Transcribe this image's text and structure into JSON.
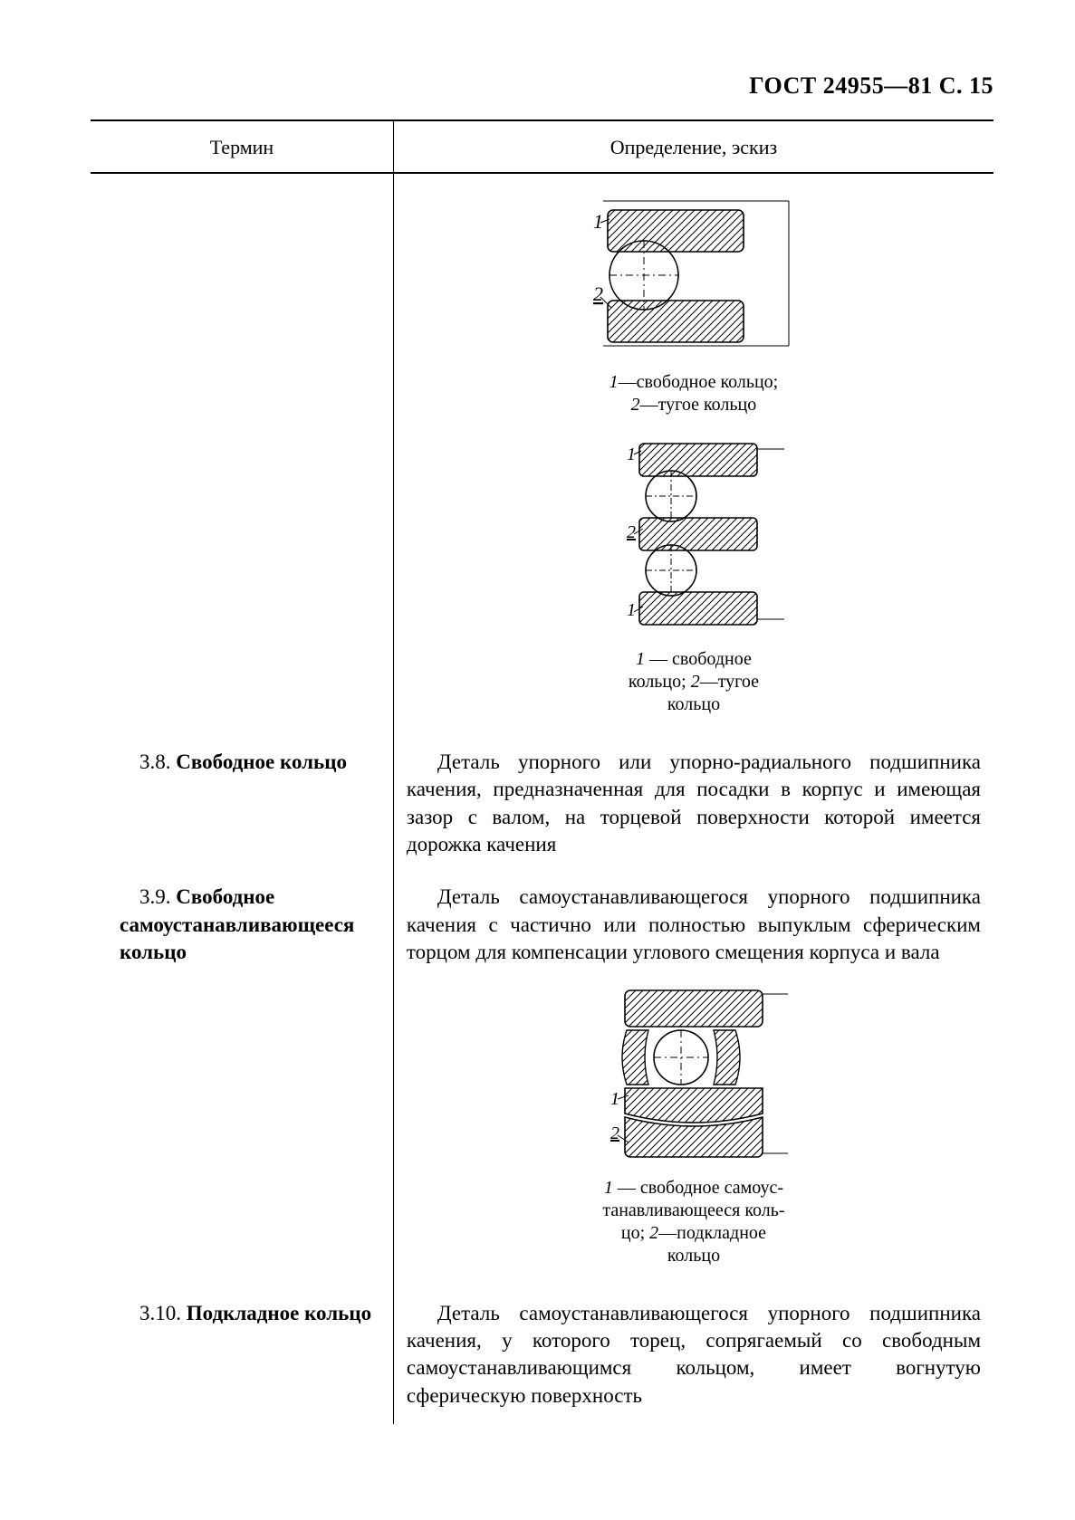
{
  "header": "ГОСТ 24955—81 С. 15",
  "table": {
    "columns": {
      "term": "Термин",
      "def": "Определение, эскиз"
    }
  },
  "fig1": {
    "label1": "1",
    "label2": "2",
    "caption_html": "<span class='i'>1</span>—свободное кольцо;<br><span class='i'>2</span>—тугое кольцо"
  },
  "fig2": {
    "label1": "1",
    "label2": "2",
    "label3": "1",
    "caption_html": "<span class='i'>1</span> — свободное<br>кольцо; <span class='i'>2</span>—тугое<br>кольцо"
  },
  "fig3": {
    "label1": "1",
    "label2": "2",
    "caption_html": "<span class='i'>1</span> — свободное самоус-<br>танавливающееся коль-<br>цо; <span class='i'>2</span>—подкладное<br>кольцо"
  },
  "entry38": {
    "num": "3.8.",
    "term": "Свободное кольцо",
    "def": "Деталь упорного или упорно-радиального подшипника качения, предназначенная для посадки в корпус и имеющая зазор с валом, на торцевой поверхности которой имеется дорожка качения"
  },
  "entry39": {
    "num": "3.9.",
    "term": "Свободное самоустанавливающееся кольцо",
    "def": "Деталь самоустанавливающегося упорного подшипника качения с частично или полностью выпуклым сферическим торцом для компенсации углового смещения корпуса и вала"
  },
  "entry310": {
    "num": "3.10.",
    "term": "Подкладное кольцо",
    "def": "Деталь самоустанавливающегося упорного подшипника качения, у которого торец, сопрягаемый со свободным самоустанавливающимся кольцом, имеет вогнутую сферическую поверхность"
  },
  "style": {
    "stroke": "#000000",
    "hatchSpacing": 7,
    "strokeWidth": 1.4
  }
}
